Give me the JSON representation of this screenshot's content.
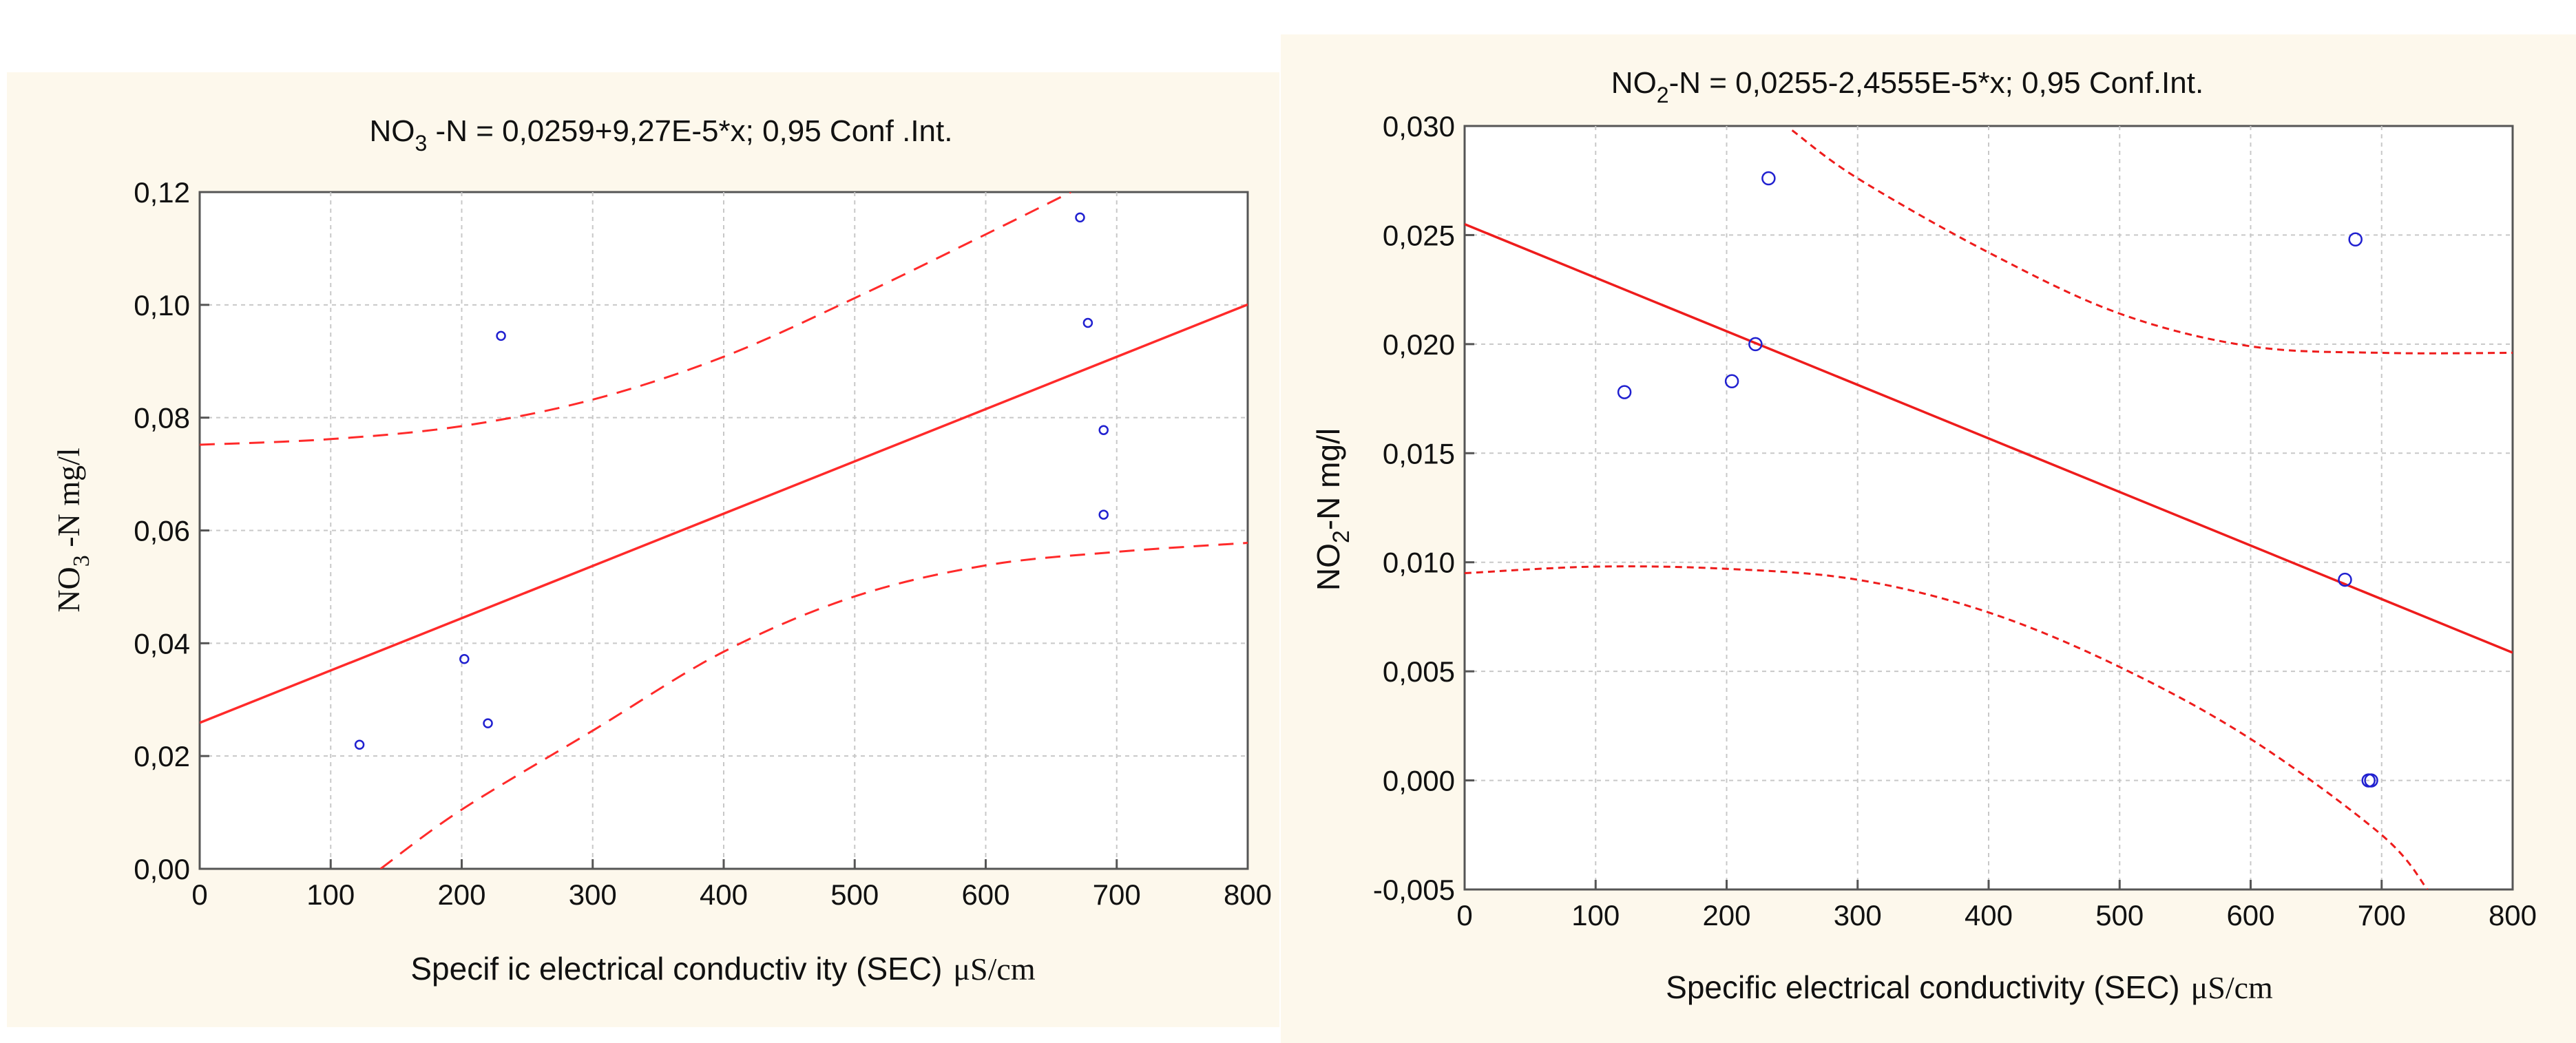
{
  "chart_data": [
    {
      "type": "scatter",
      "id": "left",
      "title_parts": [
        "NO",
        "3",
        " -N  = 0,0259+9,27E-5*x;  0,95 Conf .Int."
      ],
      "ylabel_parts": [
        "NO",
        "3",
        " -N mg/l"
      ],
      "xlabel_main": "Specif ic electrical conductiv ity  (SEC)",
      "xlabel_unit": "μS/cm",
      "xlim": [
        0,
        800
      ],
      "ylim": [
        0,
        0.12
      ],
      "x_ticks": [
        0,
        100,
        200,
        300,
        400,
        500,
        600,
        700,
        800
      ],
      "x_tick_labels": [
        "0",
        "100",
        "200",
        "300",
        "400",
        "500",
        "600",
        "700",
        "800"
      ],
      "y_ticks": [
        0,
        0.02,
        0.04,
        0.06,
        0.08,
        0.1,
        0.12
      ],
      "y_tick_labels": [
        "0,00",
        "0,02",
        "0,04",
        "0,06",
        "0,08",
        "0,10",
        "0,12"
      ],
      "regression": {
        "intercept": 0.0259,
        "slope": 9.27e-05
      },
      "upper_ci": [
        [
          0,
          0.0752
        ],
        [
          100,
          0.0762
        ],
        [
          200,
          0.0785
        ],
        [
          300,
          0.0832
        ],
        [
          400,
          0.0908
        ],
        [
          500,
          0.1012
        ],
        [
          600,
          0.1125
        ],
        [
          665,
          0.12
        ]
      ],
      "lower_ci": [
        [
          138,
          0.0
        ],
        [
          200,
          0.0105
        ],
        [
          300,
          0.0245
        ],
        [
          400,
          0.0385
        ],
        [
          500,
          0.0483
        ],
        [
          600,
          0.0538
        ],
        [
          700,
          0.0562
        ],
        [
          800,
          0.0578
        ]
      ],
      "points": [
        {
          "x": 122,
          "y": 0.022
        },
        {
          "x": 202,
          "y": 0.0372
        },
        {
          "x": 220,
          "y": 0.0258
        },
        {
          "x": 230,
          "y": 0.0945
        },
        {
          "x": 672,
          "y": 0.1155
        },
        {
          "x": 678,
          "y": 0.0968
        },
        {
          "x": 690,
          "y": 0.0778
        },
        {
          "x": 690,
          "y": 0.0628
        }
      ],
      "line_color": "#ff2a2a",
      "point_color": "#2020d0"
    },
    {
      "type": "scatter",
      "id": "right",
      "title_parts": [
        "NO",
        "2",
        "-N  = 0,0255-2,4555E-5*x;  0,95 Conf.Int."
      ],
      "ylabel_parts": [
        "NO",
        "2",
        "-N mg/l"
      ],
      "xlabel_main": "Specific electrical conductivity (SEC)",
      "xlabel_unit": "μS/cm",
      "xlim": [
        0,
        800
      ],
      "ylim": [
        -0.005,
        0.03
      ],
      "x_ticks": [
        0,
        100,
        200,
        300,
        400,
        500,
        600,
        700,
        800
      ],
      "x_tick_labels": [
        "0",
        "100",
        "200",
        "300",
        "400",
        "500",
        "600",
        "700",
        "800"
      ],
      "y_ticks": [
        -0.005,
        0.0,
        0.005,
        0.01,
        0.015,
        0.02,
        0.025,
        0.03
      ],
      "y_tick_labels": [
        "-0,005",
        "0,000",
        "0,005",
        "0,010",
        "0,015",
        "0,020",
        "0,025",
        "0,030"
      ],
      "regression": {
        "intercept": 0.0255,
        "slope": -2.4555e-05
      },
      "upper_ci": [
        [
          250,
          0.0298
        ],
        [
          300,
          0.0276
        ],
        [
          400,
          0.0242
        ],
        [
          500,
          0.0214
        ],
        [
          600,
          0.0199
        ],
        [
          700,
          0.0196
        ],
        [
          800,
          0.0196
        ]
      ],
      "lower_ci": [
        [
          0,
          0.0095
        ],
        [
          100,
          0.0098
        ],
        [
          200,
          0.0097
        ],
        [
          300,
          0.0092
        ],
        [
          400,
          0.0077
        ],
        [
          500,
          0.0052
        ],
        [
          600,
          0.0019
        ],
        [
          700,
          -0.0025
        ],
        [
          735,
          -0.005
        ]
      ],
      "points": [
        {
          "x": 122,
          "y": 0.0178
        },
        {
          "x": 204,
          "y": 0.0183
        },
        {
          "x": 222,
          "y": 0.02
        },
        {
          "x": 232,
          "y": 0.0276
        },
        {
          "x": 672,
          "y": 0.0092
        },
        {
          "x": 680,
          "y": 0.0248
        },
        {
          "x": 690,
          "y": 0.0
        },
        {
          "x": 692,
          "y": 0.0
        }
      ],
      "line_color": "#ee1c1c",
      "point_color": "#2020d0"
    }
  ]
}
